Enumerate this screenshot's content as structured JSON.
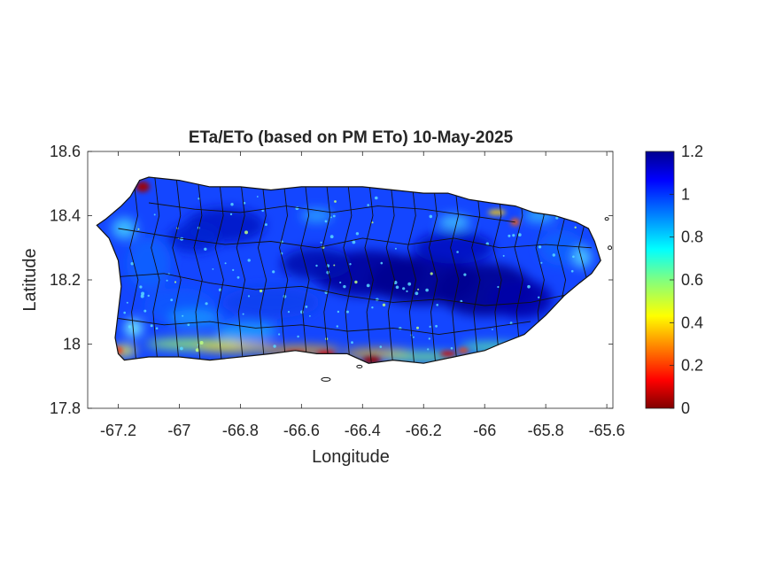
{
  "chart_data": {
    "type": "heatmap",
    "title": "ETa/ETo (based on PM ETo) 10-May-2025",
    "xlabel": "Longitude",
    "ylabel": "Latitude",
    "xlim": [
      -67.3,
      -65.58
    ],
    "ylim": [
      17.8,
      18.6
    ],
    "xticks": [
      -67.2,
      -67,
      -66.8,
      -66.6,
      -66.4,
      -66.2,
      -66,
      -65.8,
      -65.6
    ],
    "xtick_labels": [
      "-67.2",
      "-67",
      "-66.8",
      "-66.6",
      "-66.4",
      "-66.2",
      "-66",
      "-65.8",
      "-65.6"
    ],
    "yticks": [
      17.8,
      18,
      18.2,
      18.4,
      18.6
    ],
    "ytick_labels": [
      "17.8",
      "18",
      "18.2",
      "18.4",
      "18.6"
    ],
    "colorbar": {
      "colormap": "jet",
      "clim": [
        0,
        1.2
      ],
      "ticks": [
        0,
        0.2,
        0.4,
        0.6,
        0.8,
        1,
        1.2
      ],
      "tick_labels": [
        "0",
        "0.2",
        "0.4",
        "0.6",
        "0.8",
        "1",
        "1.2"
      ]
    },
    "region": "Puerto Rico (municipality boundaries)",
    "box": true,
    "grid": false
  }
}
